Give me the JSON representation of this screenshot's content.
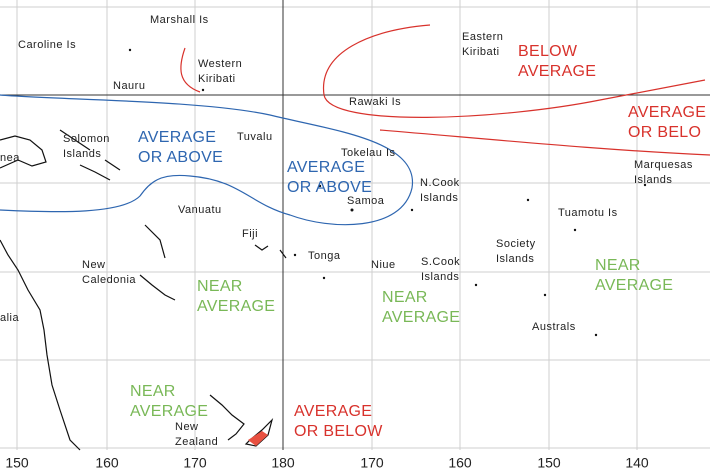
{
  "map": {
    "islands": [
      {
        "lines": [
          "Marshall Is"
        ]
      },
      {
        "lines": [
          "Caroline Is"
        ]
      },
      {
        "lines": [
          "Western",
          "Kiribati"
        ]
      },
      {
        "lines": [
          "Nauru"
        ]
      },
      {
        "lines": [
          "Eastern",
          "Kiribati"
        ]
      },
      {
        "lines": [
          "Rawaki Is"
        ]
      },
      {
        "lines": [
          "Solomon",
          "Islands"
        ]
      },
      {
        "lines": [
          "Tuvalu"
        ]
      },
      {
        "lines": [
          "Tokelau Is"
        ]
      },
      {
        "lines": [
          "N.Cook",
          "Islands"
        ]
      },
      {
        "lines": [
          "Marquesas",
          "Islands"
        ]
      },
      {
        "lines": [
          "Samoa"
        ]
      },
      {
        "lines": [
          "Vanuatu"
        ]
      },
      {
        "lines": [
          "Tuamotu Is"
        ]
      },
      {
        "lines": [
          "Fiji"
        ]
      },
      {
        "lines": [
          "Society",
          "Islands"
        ]
      },
      {
        "lines": [
          "Tonga"
        ]
      },
      {
        "lines": [
          "Niue"
        ]
      },
      {
        "lines": [
          "S.Cook",
          "Islands"
        ]
      },
      {
        "lines": [
          "New",
          "Caledonia"
        ]
      },
      {
        "lines": [
          "Australs"
        ]
      },
      {
        "lines": [
          "New",
          "Zealand"
        ]
      },
      {
        "lines": [
          "nea"
        ]
      },
      {
        "lines": [
          "alia"
        ]
      }
    ],
    "regions": [
      {
        "lines": [
          "BELOW",
          "AVERAGE"
        ],
        "color": "#d8322c"
      },
      {
        "lines": [
          "AVERAGE",
          "OR BELO"
        ],
        "color": "#d8322c"
      },
      {
        "lines": [
          "AVERAGE",
          "OR ABOVE"
        ],
        "color": "#2e66b0"
      },
      {
        "lines": [
          "AVERAGE",
          "OR ABOVE"
        ],
        "color": "#2e66b0"
      },
      {
        "lines": [
          "NEAR",
          "AVERAGE"
        ],
        "color": "#79b857"
      },
      {
        "lines": [
          "NEAR",
          "AVERAGE"
        ],
        "color": "#79b857"
      },
      {
        "lines": [
          "NEAR",
          "AVERAGE"
        ],
        "color": "#79b857"
      },
      {
        "lines": [
          "NEAR",
          "AVERAGE"
        ],
        "color": "#79b857"
      },
      {
        "lines": [
          "AVERAGE",
          "OR BELOW"
        ],
        "color": "#d8322c"
      }
    ],
    "longitude_labels": [
      "150",
      "160",
      "170",
      "180",
      "170",
      "160",
      "150",
      "140"
    ]
  }
}
